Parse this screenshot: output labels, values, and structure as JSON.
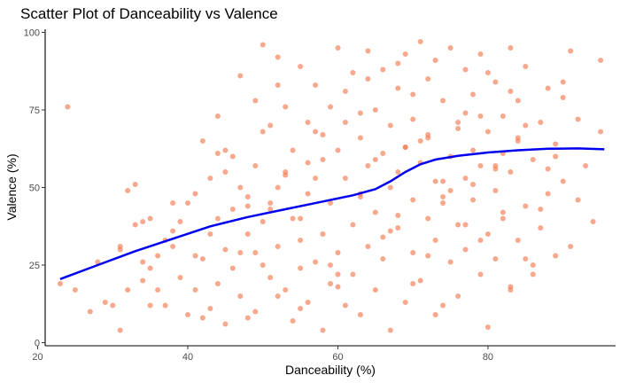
{
  "chart_data": {
    "type": "scatter",
    "title": "Scatter Plot of Danceability vs Valence",
    "xlabel": "Danceability (%)",
    "ylabel": "Valence (%)",
    "xlim": [
      21,
      97
    ],
    "ylim": [
      -1,
      101
    ],
    "xticks": [
      20,
      40,
      60,
      80
    ],
    "yticks": [
      0,
      25,
      50,
      75,
      100
    ],
    "grid": false,
    "colors": {
      "points": "#f4794f",
      "trend": "#0000ee"
    },
    "trend_line": {
      "x": [
        23,
        28,
        33,
        38,
        43,
        48,
        53,
        58,
        62,
        65,
        67,
        69,
        71,
        73,
        76,
        80,
        84,
        88,
        92,
        95.5
      ],
      "y": [
        20.5,
        25,
        29.5,
        33.5,
        37.5,
        40.5,
        43,
        45.5,
        47.5,
        49.5,
        52,
        55,
        57.5,
        59,
        60.2,
        61.3,
        62,
        62.5,
        62.6,
        62.3
      ]
    },
    "points": {
      "x": [
        23,
        24,
        25,
        27,
        28,
        29,
        30,
        31,
        31,
        31,
        32,
        32,
        33,
        33,
        34,
        34,
        34,
        35,
        35,
        36,
        36,
        37,
        37,
        38,
        38,
        39,
        39,
        40,
        40,
        41,
        41,
        41,
        42,
        42,
        43,
        43,
        43,
        44,
        44,
        44,
        45,
        45,
        45,
        46,
        46,
        46,
        47,
        47,
        47,
        48,
        48,
        48,
        49,
        49,
        49,
        50,
        50,
        50,
        51,
        51,
        51,
        52,
        52,
        52,
        53,
        53,
        53,
        54,
        54,
        54,
        55,
        55,
        55,
        56,
        56,
        56,
        57,
        57,
        57,
        58,
        58,
        58,
        59,
        59,
        59,
        60,
        60,
        60,
        61,
        61,
        61,
        62,
        62,
        62,
        63,
        63,
        63,
        64,
        64,
        64,
        65,
        65,
        65,
        66,
        66,
        66,
        67,
        67,
        67,
        68,
        68,
        68,
        69,
        69,
        69,
        70,
        70,
        70,
        71,
        71,
        71,
        72,
        72,
        72,
        73,
        73,
        73,
        74,
        74,
        74,
        75,
        75,
        75,
        76,
        76,
        76,
        77,
        77,
        77,
        78,
        78,
        78,
        79,
        79,
        79,
        80,
        80,
        80,
        81,
        81,
        81,
        82,
        82,
        82,
        83,
        83,
        83,
        84,
        84,
        84,
        85,
        85,
        86,
        86,
        87,
        87,
        88,
        88,
        89,
        89,
        90,
        90,
        91,
        91,
        92,
        92,
        93,
        94,
        95,
        95,
        50,
        52,
        55,
        58,
        60,
        63,
        65,
        67,
        69,
        70,
        72,
        74,
        76,
        78,
        80,
        82,
        84,
        86,
        88,
        90,
        45,
        47,
        49,
        51,
        53,
        55,
        57,
        59,
        61,
        63,
        66,
        68,
        70,
        72,
        74,
        77,
        79,
        81,
        83,
        85,
        35,
        38,
        42,
        44,
        48,
        52,
        56,
        60,
        64,
        68,
        71,
        73,
        75,
        77,
        79,
        81,
        83,
        85,
        87,
        89
      ],
      "y": [
        19,
        76,
        17,
        10,
        26,
        13,
        12,
        31,
        4,
        30,
        17,
        49,
        38,
        51,
        26,
        39,
        20,
        12,
        40,
        17,
        28,
        12,
        33,
        31,
        45,
        39,
        21,
        9,
        45,
        28,
        48,
        17,
        8,
        65,
        11,
        35,
        53,
        73,
        19,
        40,
        6,
        30,
        55,
        24,
        60,
        43,
        86,
        15,
        50,
        35,
        8,
        47,
        10,
        57,
        29,
        96,
        39,
        68,
        45,
        21,
        70,
        92,
        31,
        50,
        76,
        17,
        55,
        7,
        40,
        62,
        33,
        89,
        24,
        48,
        13,
        71,
        26,
        53,
        83,
        4,
        59,
        35,
        19,
        45,
        76,
        95,
        29,
        62,
        12,
        53,
        81,
        38,
        87,
        22,
        48,
        66,
        9,
        57,
        94,
        31,
        42,
        75,
        17,
        61,
        88,
        27,
        50,
        70,
        4,
        37,
        82,
        55,
        13,
        63,
        93,
        46,
        29,
        72,
        58,
        97,
        20,
        40,
        85,
        67,
        33,
        52,
        91,
        12,
        45,
        78,
        26,
        60,
        95,
        38,
        71,
        15,
        53,
        88,
        30,
        62,
        46,
        80,
        22,
        57,
        93,
        35,
        68,
        5,
        49,
        84,
        27,
        61,
        73,
        40,
        95,
        18,
        55,
        78,
        33,
        66,
        44,
        89,
        25,
        59,
        71,
        37,
        82,
        48,
        28,
        64,
        52,
        79,
        31,
        94,
        46,
        72,
        57,
        39,
        68,
        91,
        25,
        83,
        40,
        67,
        18,
        74,
        59,
        36,
        63,
        80,
        28,
        47,
        69,
        51,
        87,
        42,
        65,
        22,
        56,
        84,
        62,
        29,
        78,
        43,
        54,
        11,
        68,
        25,
        71,
        47,
        34,
        90,
        19,
        66,
        52,
        38,
        73,
        56,
        81,
        27,
        24,
        36,
        27,
        61,
        44,
        15,
        58,
        22,
        85,
        41,
        65,
        9,
        49,
        74,
        33,
        57,
        17,
        70,
        43,
        60
      ]
    }
  }
}
